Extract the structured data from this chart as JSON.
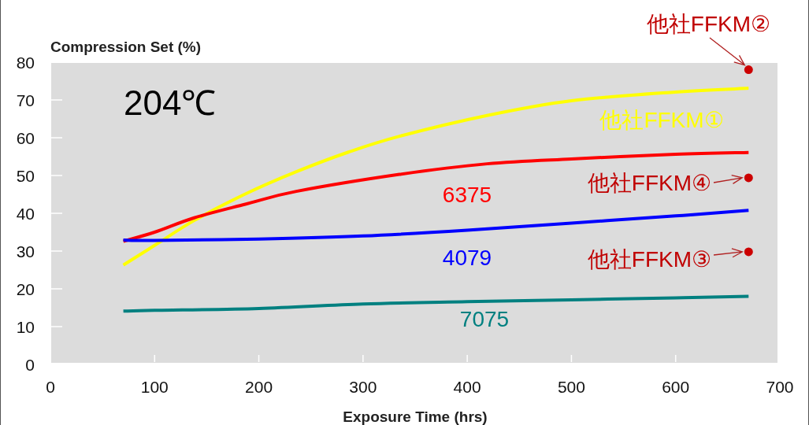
{
  "chart_data": {
    "type": "line",
    "ylabel": "Compression Set (%)",
    "xlabel": "Exposure Time (hrs)",
    "annotations": [
      "204℃"
    ],
    "xlim": [
      0,
      700
    ],
    "xticks": [
      0,
      100,
      200,
      300,
      400,
      500,
      600,
      700
    ],
    "ylim": [
      0,
      80
    ],
    "yticks": [
      0,
      10,
      20,
      30,
      40,
      50,
      60,
      70,
      80
    ],
    "series": [
      {
        "name": "他社FFKM①",
        "color": "#ffff00",
        "x": [
          70,
          100,
          138,
          187,
          236,
          286,
          335,
          419,
          500,
          600,
          670
        ],
        "values": [
          26.3,
          31.5,
          38.1,
          45.1,
          51.0,
          56.2,
          60.4,
          65.9,
          69.8,
          72.1,
          73.1
        ]
      },
      {
        "name": "6375",
        "color": "#ff0000",
        "x": [
          70,
          100,
          138,
          187,
          236,
          335,
          419,
          500,
          600,
          670
        ],
        "values": [
          32.6,
          35.0,
          38.8,
          42.4,
          45.8,
          50.3,
          53.1,
          54.4,
          55.6,
          56.1
        ]
      },
      {
        "name": "4079",
        "color": "#0000ff",
        "x": [
          70,
          100,
          200,
          300,
          400,
          500,
          600,
          670
        ],
        "values": [
          32.9,
          32.8,
          33.2,
          34.0,
          35.5,
          37.4,
          39.3,
          40.8
        ]
      },
      {
        "name": "7075",
        "color": "#008080",
        "x": [
          70,
          100,
          200,
          300,
          400,
          500,
          600,
          670
        ],
        "values": [
          14.1,
          14.3,
          14.8,
          16.0,
          16.6,
          17.1,
          17.6,
          18.0
        ]
      },
      {
        "name": "他社FFKM②",
        "type": "scatter",
        "color": "#cc0000",
        "x": [
          670
        ],
        "values": [
          78
        ]
      },
      {
        "name": "他社FFKM④",
        "type": "scatter",
        "color": "#cc0000",
        "x": [
          670
        ],
        "values": [
          49.4
        ]
      },
      {
        "name": "他社FFKM③",
        "type": "scatter",
        "color": "#cc0000",
        "x": [
          670
        ],
        "values": [
          29.8
        ]
      }
    ]
  }
}
